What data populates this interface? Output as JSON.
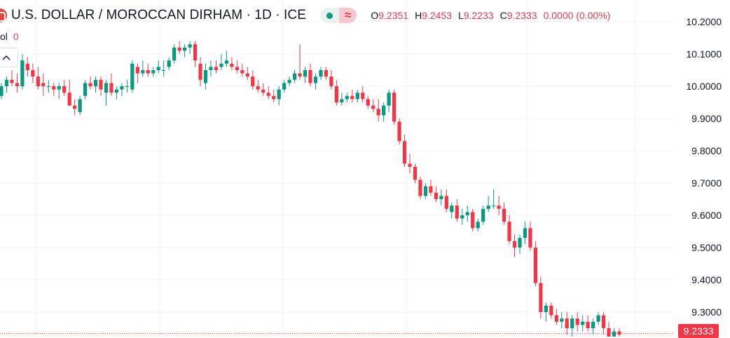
{
  "header": {
    "title": "U.S. DOLLAR / MOROCCAN DIRHAM · 1D · ICE",
    "wave_symbol": "≈",
    "ohlc": {
      "o_label": "O",
      "o_value": "9.2351",
      "h_label": "H",
      "h_value": "9.2453",
      "l_label": "L",
      "l_value": "9.2233",
      "c_label": "C",
      "c_value": "9.2333",
      "change": "0.0000 (0.00%)"
    }
  },
  "volume": {
    "label": "ol",
    "value": "0"
  },
  "colors": {
    "up": "#089981",
    "down": "#f23645",
    "grid": "#f0f3fa",
    "text": "#131722"
  },
  "chart_data": {
    "type": "candlestick",
    "y_range": [
      9.2,
      10.2
    ],
    "y_ticks": [
      "10.2000",
      "10.1000",
      "10.0000",
      "9.9000",
      "9.8000",
      "9.7000",
      "9.6000",
      "9.5000",
      "9.4000",
      "9.3000"
    ],
    "last_price": "9.2333",
    "candles": [
      [
        9.97,
        10.01,
        9.96,
        10.0
      ],
      [
        10.0,
        10.03,
        9.98,
        10.02
      ],
      [
        10.02,
        10.05,
        10.0,
        10.01
      ],
      [
        10.01,
        10.04,
        9.98,
        10.0
      ],
      [
        10.0,
        10.1,
        9.99,
        10.08
      ],
      [
        10.07,
        10.09,
        10.03,
        10.05
      ],
      [
        10.05,
        10.07,
        10.01,
        10.03
      ],
      [
        10.03,
        10.06,
        9.99,
        10.0
      ],
      [
        10.01,
        10.04,
        9.97,
        10.0
      ],
      [
        10.0,
        10.02,
        9.98,
        10.0
      ],
      [
        10.0,
        10.01,
        9.97,
        9.99
      ],
      [
        9.99,
        10.01,
        9.96,
        10.0
      ],
      [
        10.0,
        10.02,
        9.97,
        9.98
      ],
      [
        9.98,
        10.02,
        9.95,
        9.94
      ],
      [
        9.94,
        9.96,
        9.91,
        9.93
      ],
      [
        9.92,
        9.97,
        9.91,
        9.96
      ],
      [
        9.97,
        10.02,
        9.96,
        10.01
      ],
      [
        10.01,
        10.03,
        9.99,
        10.0
      ],
      [
        10.0,
        10.03,
        9.98,
        10.02
      ],
      [
        10.02,
        10.03,
        9.97,
        9.99
      ],
      [
        9.98,
        10.02,
        9.94,
        10.01
      ],
      [
        10.01,
        10.04,
        9.97,
        9.98
      ],
      [
        9.98,
        10.0,
        9.96,
        9.99
      ],
      [
        9.99,
        10.01,
        9.97,
        10.0
      ],
      [
        10.0,
        10.02,
        9.98,
        10.0
      ],
      [
        9.99,
        10.08,
        9.98,
        10.07
      ],
      [
        10.06,
        10.07,
        10.01,
        10.04
      ],
      [
        10.04,
        10.08,
        10.03,
        10.05
      ],
      [
        10.05,
        10.07,
        10.03,
        10.04
      ],
      [
        10.04,
        10.06,
        10.03,
        10.05
      ],
      [
        10.05,
        10.08,
        10.04,
        10.06
      ],
      [
        10.05,
        10.08,
        10.03,
        10.05
      ],
      [
        10.06,
        10.09,
        10.05,
        10.08
      ],
      [
        10.08,
        10.13,
        10.07,
        10.12
      ],
      [
        10.12,
        10.14,
        10.1,
        10.11
      ],
      [
        10.11,
        10.13,
        10.09,
        10.12
      ],
      [
        10.12,
        10.14,
        10.1,
        10.13
      ],
      [
        10.13,
        10.14,
        10.06,
        10.08
      ],
      [
        10.07,
        10.09,
        10.0,
        10.02
      ],
      [
        10.01,
        10.07,
        9.99,
        10.05
      ],
      [
        10.05,
        10.08,
        10.03,
        10.06
      ],
      [
        10.06,
        10.08,
        10.04,
        10.05
      ],
      [
        10.06,
        10.1,
        10.05,
        10.07
      ],
      [
        10.07,
        10.11,
        10.06,
        10.08
      ],
      [
        10.07,
        10.09,
        10.05,
        10.06
      ],
      [
        10.06,
        10.08,
        10.04,
        10.05
      ],
      [
        10.05,
        10.07,
        10.03,
        10.04
      ],
      [
        10.04,
        10.06,
        10.02,
        10.03
      ],
      [
        10.03,
        10.05,
        9.99,
        10.0
      ],
      [
        10.0,
        10.02,
        9.98,
        9.99
      ],
      [
        9.99,
        10.01,
        9.97,
        9.98
      ],
      [
        9.98,
        10.0,
        9.96,
        9.97
      ],
      [
        9.97,
        9.99,
        9.95,
        9.96
      ],
      [
        9.96,
        10.0,
        9.94,
        9.99
      ],
      [
        9.99,
        10.02,
        9.98,
        10.01
      ],
      [
        10.01,
        10.03,
        10.0,
        10.02
      ],
      [
        10.02,
        10.05,
        10.01,
        10.04
      ],
      [
        10.04,
        10.13,
        10.02,
        10.03
      ],
      [
        10.03,
        10.06,
        10.01,
        10.05
      ],
      [
        10.05,
        10.07,
        10.0,
        10.01
      ],
      [
        10.01,
        10.04,
        9.99,
        10.03
      ],
      [
        10.03,
        10.06,
        10.02,
        10.05
      ],
      [
        10.05,
        10.06,
        10.02,
        10.03
      ],
      [
        10.03,
        10.05,
        9.99,
        10.0
      ],
      [
        10.0,
        10.02,
        9.94,
        9.95
      ],
      [
        9.95,
        9.98,
        9.94,
        9.96
      ],
      [
        9.96,
        9.98,
        9.95,
        9.97
      ],
      [
        9.97,
        9.99,
        9.95,
        9.96
      ],
      [
        9.96,
        9.99,
        9.95,
        9.98
      ],
      [
        9.98,
        10.0,
        9.95,
        9.96
      ],
      [
        9.96,
        9.97,
        9.93,
        9.94
      ],
      [
        9.94,
        9.96,
        9.92,
        9.93
      ],
      [
        9.93,
        9.96,
        9.89,
        9.91
      ],
      [
        9.91,
        9.95,
        9.89,
        9.94
      ],
      [
        9.94,
        9.99,
        9.92,
        9.98
      ],
      [
        9.98,
        9.99,
        9.88,
        9.89
      ],
      [
        9.89,
        9.9,
        9.82,
        9.83
      ],
      [
        9.83,
        9.85,
        9.75,
        9.76
      ],
      [
        9.76,
        9.79,
        9.73,
        9.75
      ],
      [
        9.75,
        9.76,
        9.7,
        9.71
      ],
      [
        9.71,
        9.72,
        9.65,
        9.66
      ],
      [
        9.66,
        9.7,
        9.65,
        9.69
      ],
      [
        9.69,
        9.71,
        9.66,
        9.67
      ],
      [
        9.67,
        9.69,
        9.64,
        9.65
      ],
      [
        9.65,
        9.68,
        9.63,
        9.66
      ],
      [
        9.66,
        9.68,
        9.61,
        9.62
      ],
      [
        9.61,
        9.64,
        9.59,
        9.63
      ],
      [
        9.63,
        9.65,
        9.58,
        9.59
      ],
      [
        9.59,
        9.62,
        9.57,
        9.6
      ],
      [
        9.6,
        9.63,
        9.58,
        9.61
      ],
      [
        9.61,
        9.62,
        9.55,
        9.56
      ],
      [
        9.56,
        9.59,
        9.55,
        9.58
      ],
      [
        9.58,
        9.63,
        9.57,
        9.62
      ],
      [
        9.62,
        9.66,
        9.61,
        9.63
      ],
      [
        9.63,
        9.68,
        9.62,
        9.63
      ],
      [
        9.63,
        9.66,
        9.6,
        9.62
      ],
      [
        9.62,
        9.64,
        9.57,
        9.58
      ],
      [
        9.58,
        9.6,
        9.51,
        9.52
      ],
      [
        9.52,
        9.54,
        9.47,
        9.5
      ],
      [
        9.5,
        9.54,
        9.48,
        9.53
      ],
      [
        9.53,
        9.58,
        9.51,
        9.56
      ],
      [
        9.56,
        9.58,
        9.49,
        9.5
      ],
      [
        9.5,
        9.52,
        9.38,
        9.39
      ],
      [
        9.39,
        9.41,
        9.28,
        9.3
      ],
      [
        9.3,
        9.33,
        9.27,
        9.32
      ],
      [
        9.32,
        9.33,
        9.28,
        9.29
      ],
      [
        9.29,
        9.31,
        9.26,
        9.27
      ],
      [
        9.27,
        9.3,
        9.25,
        9.28
      ],
      [
        9.28,
        9.3,
        9.23,
        9.25
      ],
      [
        9.25,
        9.29,
        9.22,
        9.28
      ],
      [
        9.28,
        9.3,
        9.24,
        9.26
      ],
      [
        9.26,
        9.29,
        9.24,
        9.27
      ],
      [
        9.27,
        9.29,
        9.24,
        9.25
      ],
      [
        9.25,
        9.28,
        9.23,
        9.27
      ],
      [
        9.27,
        9.3,
        9.26,
        9.29
      ],
      [
        9.29,
        9.3,
        9.23,
        9.25
      ],
      [
        9.25,
        9.27,
        9.21,
        9.22
      ],
      [
        9.22,
        9.25,
        9.21,
        9.24
      ],
      [
        9.24,
        9.25,
        9.22,
        9.23
      ]
    ]
  }
}
